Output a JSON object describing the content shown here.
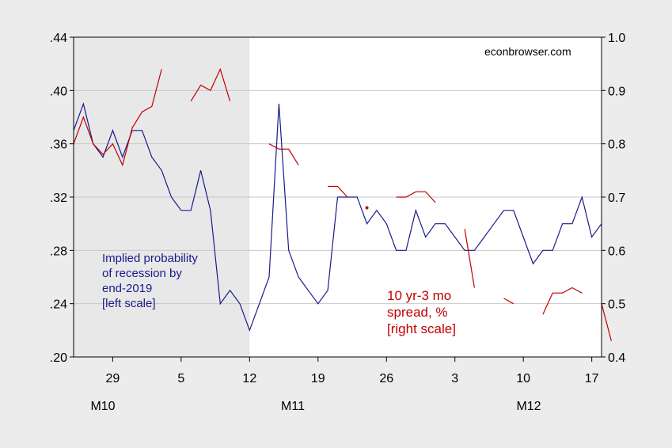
{
  "chart_data": {
    "type": "line",
    "watermark": "econbrowser.com",
    "x_tick_labels": [
      "29",
      "5",
      "12",
      "19",
      "26",
      "3",
      "10",
      "17"
    ],
    "month_labels": [
      "M10",
      "M11",
      "M12"
    ],
    "left_axis": {
      "ylim": [
        0.2,
        0.44
      ],
      "ticks": [
        ".20",
        ".24",
        ".28",
        ".32",
        ".36",
        ".40",
        ".44"
      ]
    },
    "right_axis": {
      "ylim": [
        0.4,
        1.0
      ],
      "ticks": [
        "0.4",
        "0.5",
        "0.6",
        "0.7",
        "0.8",
        "0.9",
        "1.0"
      ]
    },
    "shaded_region": {
      "from_index": 0,
      "to_index": 18,
      "color": "#e8e8e8"
    },
    "series": [
      {
        "name": "Implied probability of recession by end-2019 [left scale]",
        "axis": "left",
        "color": "#1a1a8c",
        "values": [
          0.37,
          0.39,
          0.36,
          0.35,
          0.37,
          0.35,
          0.37,
          0.37,
          0.35,
          0.34,
          0.32,
          0.31,
          0.31,
          0.34,
          0.31,
          0.24,
          0.25,
          0.24,
          0.22,
          0.24,
          0.26,
          0.39,
          0.28,
          0.26,
          0.25,
          0.24,
          0.25,
          0.32,
          0.32,
          0.32,
          0.3,
          0.31,
          0.3,
          0.28,
          0.28,
          0.31,
          0.29,
          0.3,
          0.3,
          0.29,
          0.28,
          0.28,
          0.29,
          0.3,
          0.31,
          0.31,
          0.29,
          0.27,
          0.28,
          0.28,
          0.3,
          0.3,
          0.32,
          0.29,
          0.3
        ]
      },
      {
        "name": "10 yr-3 mo spread, % [right scale]",
        "axis": "right",
        "color": "#c00000",
        "values": [
          0.8,
          0.85,
          0.8,
          0.78,
          0.8,
          0.76,
          0.83,
          0.86,
          0.87,
          0.94,
          null,
          null,
          0.88,
          0.91,
          0.9,
          0.94,
          0.88,
          null,
          null,
          null,
          0.8,
          0.79,
          0.79,
          0.76,
          null,
          null,
          0.72,
          0.72,
          0.7,
          null,
          0.68,
          null,
          null,
          0.7,
          0.7,
          0.71,
          0.71,
          0.69,
          null,
          null,
          0.64,
          0.53,
          null,
          null,
          0.51,
          0.5,
          null,
          null,
          0.48,
          0.52,
          0.52,
          0.53,
          0.52,
          null,
          0.5,
          0.43
        ]
      }
    ],
    "annotations": [
      {
        "series_index": 0,
        "lines": [
          "Implied probability",
          "of recession by",
          "end-2019",
          "[left scale]"
        ]
      },
      {
        "series_index": 1,
        "lines": [
          "10 yr-3 mo",
          "spread, %",
          "[right scale]"
        ]
      }
    ]
  }
}
